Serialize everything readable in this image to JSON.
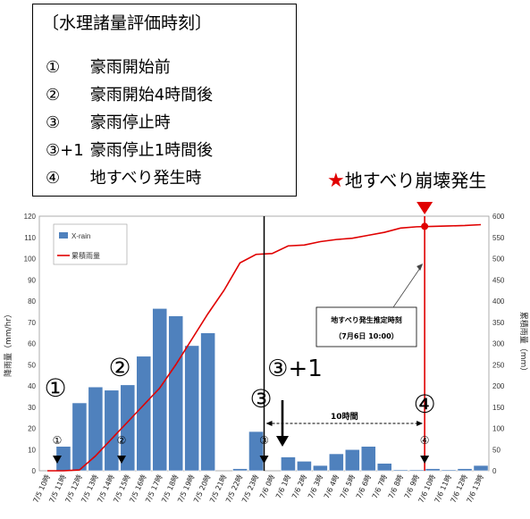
{
  "legend_box": {
    "header": "〔水理諸量評価時刻〕",
    "items": [
      {
        "symbol": "①",
        "text": "豪雨開始前"
      },
      {
        "symbol": "②",
        "text": "豪雨開始4時間後"
      },
      {
        "symbol": "③",
        "text": "豪雨停止時"
      },
      {
        "symbol": "③+1",
        "text": "豪雨停止1時間後"
      },
      {
        "symbol": "④",
        "text": "地すべり発生時"
      }
    ]
  },
  "collapse_label": {
    "star": "★",
    "text": "地すべり崩壊発生"
  },
  "annotation": {
    "line1": "地すべり発生推定時刻",
    "line2": "（7月6日 10:00）",
    "interval": "10時間",
    "big_1": "①",
    "big_2": "②",
    "big_3": "③",
    "big_3p1": "③+1",
    "big_4": "④",
    "small_1": "①",
    "small_2": "②",
    "small_3": "③",
    "small_4": "④"
  },
  "colors": {
    "bar": "#4f81bd",
    "line": "#e00000",
    "accent": "#e00000"
  },
  "chart_data": {
    "type": "bar",
    "categories": [
      "7/5 10時",
      "7/5 11時",
      "7/5 12時",
      "7/5 13時",
      "7/5 14時",
      "7/5 15時",
      "7/5 16時",
      "7/5 17時",
      "7/5 18時",
      "7/5 19時",
      "7/5 20時",
      "7/5 21時",
      "7/5 22時",
      "7/5 23時",
      "7/6 0時",
      "7/6 1時",
      "7/6 2時",
      "7/6 3時",
      "7/6 4時",
      "7/6 5時",
      "7/6 6時",
      "7/6 7時",
      "7/6 8時",
      "7/6 9時",
      "7/6 10時",
      "7/6 11時",
      "7/6 12時",
      "7/6 13時"
    ],
    "series": [
      {
        "name": "X-rain",
        "type": "bar",
        "axis": "left",
        "values": [
          0,
          11.5,
          32,
          39.5,
          38,
          40.5,
          54,
          76.5,
          73,
          59,
          65,
          0,
          1,
          18.5,
          0,
          6.5,
          4.5,
          2.5,
          8,
          10,
          11.5,
          3.5,
          0.5,
          0.5,
          1,
          0.5,
          1,
          2.5
        ]
      },
      {
        "name": "累積雨量",
        "type": "line",
        "axis": "right",
        "values": [
          0,
          0,
          2,
          35,
          75,
          115,
          155,
          195,
          250,
          310,
          370,
          425,
          490,
          510,
          512,
          530,
          532,
          540,
          545,
          548,
          555,
          562,
          572,
          575,
          576,
          577,
          578,
          580
        ]
      }
    ],
    "ylabel_left": "降雨量（mm/hr）",
    "ylabel_right": "累積雨量（mm）",
    "ylim_left": [
      0,
      120
    ],
    "ylim_right": [
      0,
      600
    ],
    "yticks_left": [
      0,
      10,
      20,
      30,
      40,
      50,
      60,
      70,
      80,
      90,
      100,
      110,
      120
    ],
    "yticks_right": [
      0,
      50,
      100,
      150,
      200,
      250,
      300,
      350,
      400,
      450,
      500,
      550,
      600
    ],
    "marker_black_index": 14,
    "marker_red_index": 24,
    "legend_position": "top-left",
    "grid": false
  }
}
